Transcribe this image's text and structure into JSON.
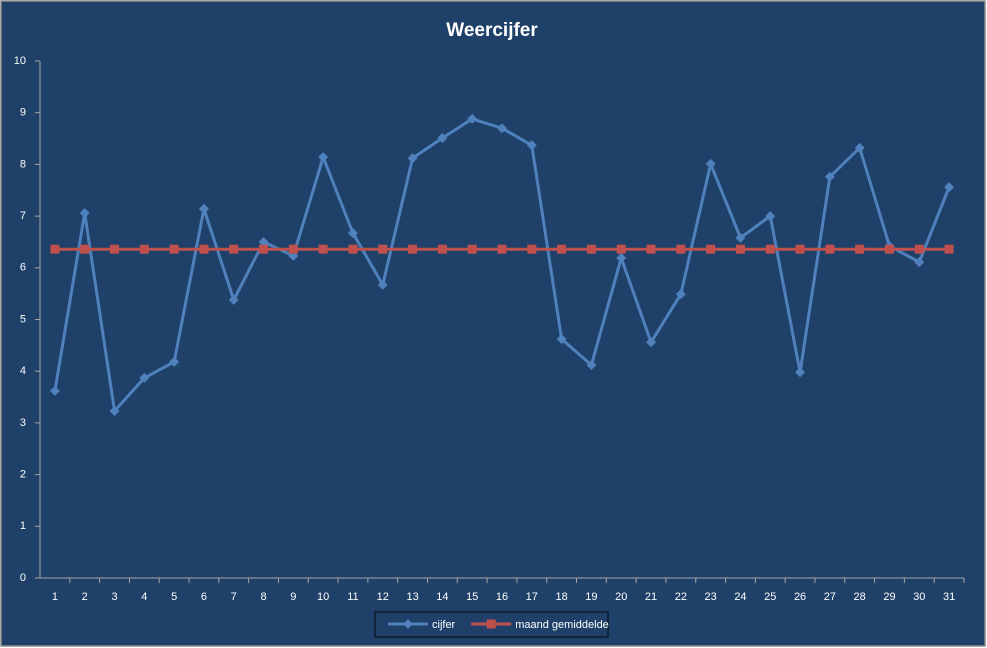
{
  "chart_data": {
    "type": "line",
    "title": "Weercijfer",
    "categories": [
      1,
      2,
      3,
      4,
      5,
      6,
      7,
      8,
      9,
      10,
      11,
      12,
      13,
      14,
      15,
      16,
      17,
      18,
      19,
      20,
      21,
      22,
      23,
      24,
      25,
      26,
      27,
      28,
      29,
      30,
      31
    ],
    "series": [
      {
        "name": "cijfer",
        "color": "#4f81bd",
        "marker": "diamond",
        "values": [
          3.62,
          7.06,
          3.23,
          3.87,
          4.18,
          7.14,
          5.38,
          6.5,
          6.23,
          8.14,
          6.67,
          5.67,
          8.12,
          8.51,
          8.88,
          8.7,
          8.37,
          4.62,
          4.12,
          6.19,
          4.56,
          5.49,
          8.01,
          6.58,
          7.0,
          3.98,
          7.76,
          8.32,
          6.42,
          6.11,
          7.56
        ]
      },
      {
        "name": "maand gemiddelde",
        "color": "#c0504d",
        "marker": "square",
        "values": [
          6.36,
          6.36,
          6.36,
          6.36,
          6.36,
          6.36,
          6.36,
          6.36,
          6.36,
          6.36,
          6.36,
          6.36,
          6.36,
          6.36,
          6.36,
          6.36,
          6.36,
          6.36,
          6.36,
          6.36,
          6.36,
          6.36,
          6.36,
          6.36,
          6.36,
          6.36,
          6.36,
          6.36,
          6.36,
          6.36,
          6.36
        ]
      }
    ],
    "ylim": [
      0,
      10
    ],
    "yticks": [
      0,
      1,
      2,
      3,
      4,
      5,
      6,
      7,
      8,
      9,
      10
    ],
    "grid": false,
    "legend": "bottom"
  }
}
